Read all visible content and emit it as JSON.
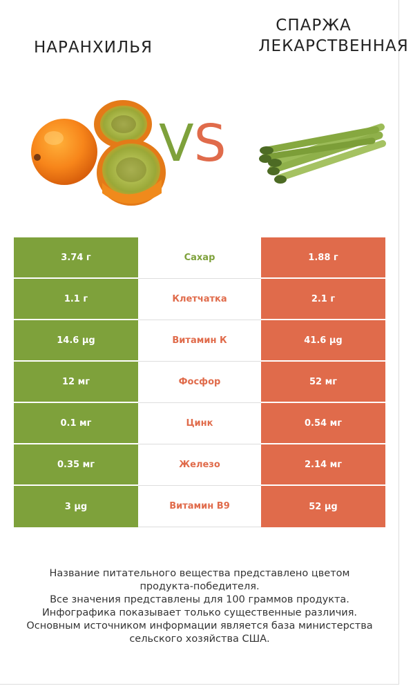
{
  "left_product": {
    "name": "НАРАНХИЛЬЯ"
  },
  "right_product": {
    "name_line1": "СПАРЖА",
    "name_line2": "ЛЕКАРСТВЕННАЯ"
  },
  "vs": {
    "v": "V",
    "s": "S"
  },
  "colors": {
    "left": "#7ea13b",
    "right": "#e06b4b"
  },
  "rows": [
    {
      "left": "3.74 г",
      "nutrient": "Сахар",
      "right": "1.88 г",
      "winner": "left"
    },
    {
      "left": "1.1 г",
      "nutrient": "Клетчатка",
      "right": "2.1 г",
      "winner": "right"
    },
    {
      "left": "14.6 µg",
      "nutrient": "Витамин К",
      "right": "41.6 µg",
      "winner": "right"
    },
    {
      "left": "12 мг",
      "nutrient": "Фосфор",
      "right": "52 мг",
      "winner": "right"
    },
    {
      "left": "0.1 мг",
      "nutrient": "Цинк",
      "right": "0.54 мг",
      "winner": "right"
    },
    {
      "left": "0.35 мг",
      "nutrient": "Железо",
      "right": "2.14 мг",
      "winner": "right"
    },
    {
      "left": "3 µg",
      "nutrient": "Витамин B9",
      "right": "52 µg",
      "winner": "right"
    }
  ],
  "footer": [
    "Название питательного вещества представлено цветом",
    "продукта-победителя.",
    "Все значения представлены для 100 граммов продукта.",
    "Инфографика показывает только существенные различия.",
    "Основным источником информации является база министерства",
    "сельского хозяйства США."
  ]
}
